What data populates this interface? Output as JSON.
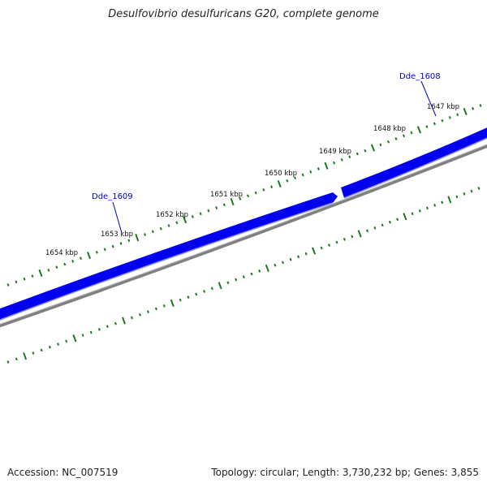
{
  "title": "Desulfovibrio desulfuricans G20, complete genome",
  "footer": {
    "accession": "Accession: NC_007519",
    "summary": "Topology: circular; Length: 3,730,232 bp; Genes: 3,855"
  },
  "colors": {
    "gene_forward": "#0000ee",
    "gene_reverse": "#0000ee",
    "backbone": "#808080",
    "tick": "#1a7a1a",
    "label": "#0000cc"
  },
  "kbp_labels": [
    "1654 kbp",
    "1653 kbp",
    "1652 kbp",
    "1651 kbp",
    "1650 kbp",
    "1649 kbp",
    "1648 kbp",
    "1647 kbp"
  ],
  "genes": [
    {
      "name": "Dde_1609",
      "strand": "+"
    },
    {
      "name": "Dde_1608",
      "strand": "+"
    }
  ]
}
